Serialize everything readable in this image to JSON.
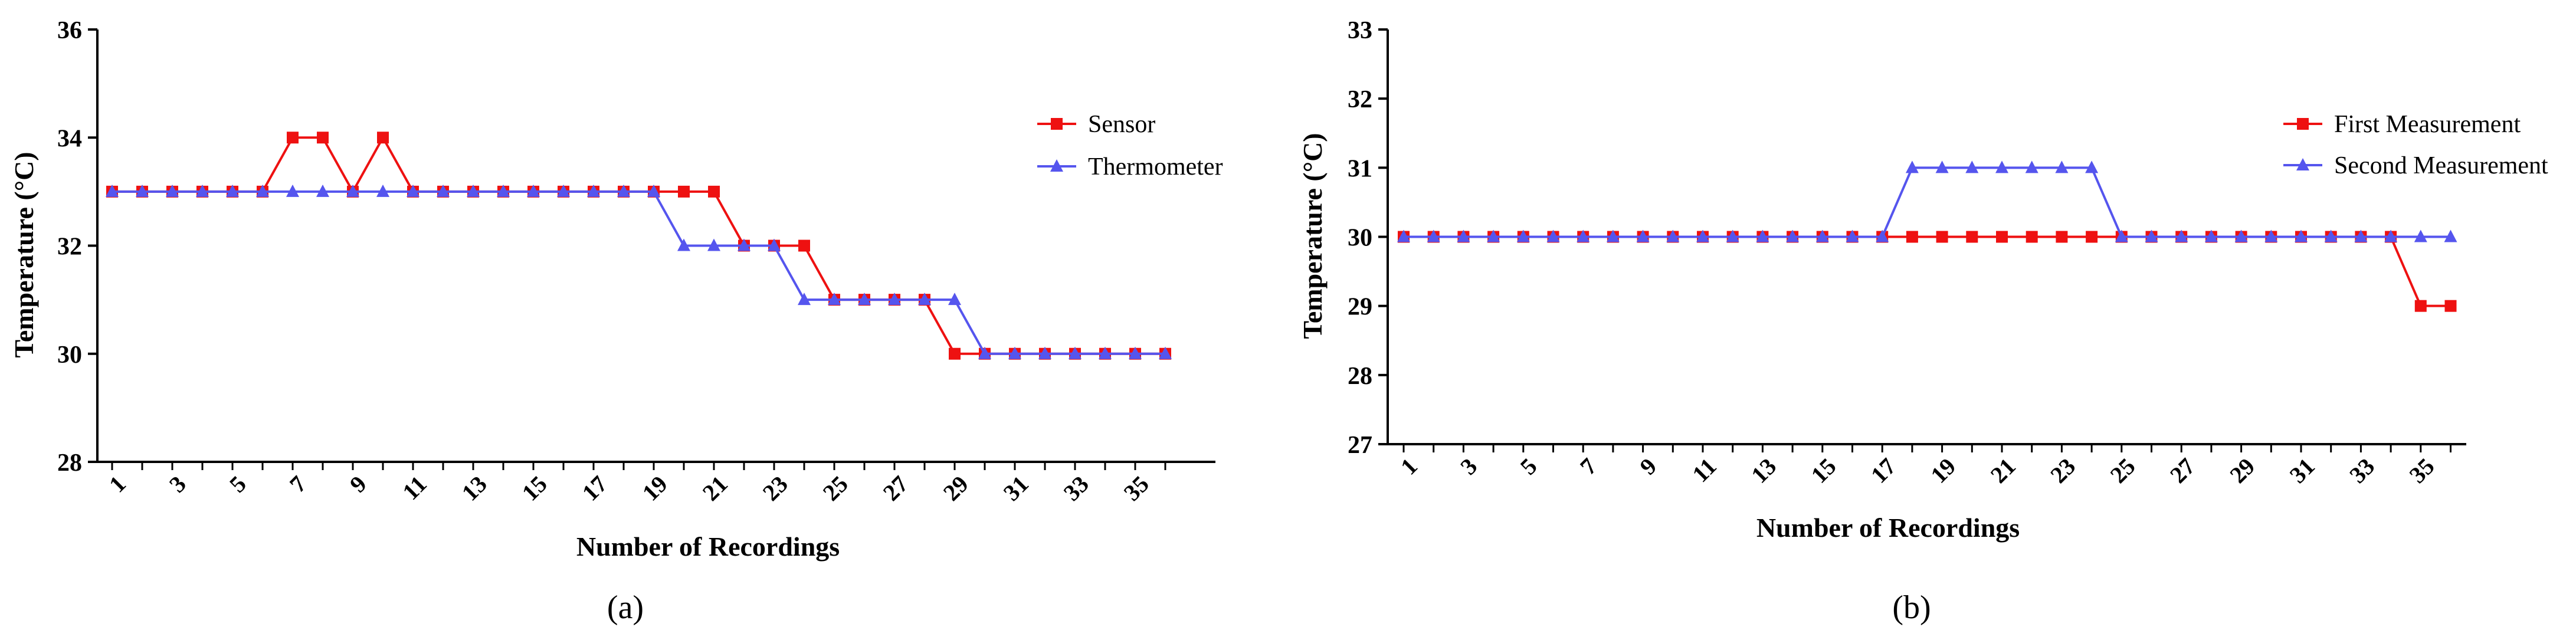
{
  "chart_data": [
    {
      "type": "line",
      "panel_label": "(a)",
      "title": "",
      "xlabel": "Number of Recordings",
      "ylabel": "Temperature (°C)",
      "ylim": [
        28,
        36
      ],
      "y_ticks": [
        "28",
        "30",
        "32",
        "34",
        "36"
      ],
      "x_tick_labels": [
        "1",
        "3",
        "5",
        "7",
        "9",
        "11",
        "13",
        "15",
        "17",
        "19",
        "21",
        "23",
        "25",
        "27",
        "29",
        "31",
        "33",
        "35"
      ],
      "x": [
        1,
        2,
        3,
        4,
        5,
        6,
        7,
        8,
        9,
        10,
        11,
        12,
        13,
        14,
        15,
        16,
        17,
        18,
        19,
        20,
        21,
        22,
        23,
        24,
        25,
        26,
        27,
        28,
        29,
        30,
        31,
        32,
        33,
        34,
        35,
        36
      ],
      "legend_position": "top-right",
      "series": [
        {
          "name": "Sensor",
          "color": "#ee1111",
          "marker": "square",
          "values": [
            33,
            33,
            33,
            33,
            33,
            33,
            34,
            34,
            33,
            34,
            33,
            33,
            33,
            33,
            33,
            33,
            33,
            33,
            33,
            33,
            33,
            32,
            32,
            32,
            31,
            31,
            31,
            31,
            30,
            30,
            30,
            30,
            30,
            30,
            30,
            30
          ]
        },
        {
          "name": "Thermometer",
          "color": "#5555ee",
          "marker": "triangle",
          "values": [
            33,
            33,
            33,
            33,
            33,
            33,
            33,
            33,
            33,
            33,
            33,
            33,
            33,
            33,
            33,
            33,
            33,
            33,
            33,
            32,
            32,
            32,
            32,
            31,
            31,
            31,
            31,
            31,
            31,
            30,
            30,
            30,
            30,
            30,
            30,
            30
          ]
        }
      ]
    },
    {
      "type": "line",
      "panel_label": "(b)",
      "title": "",
      "xlabel": "Number of Recordings",
      "ylabel": "Temperature (°C)",
      "ylim": [
        27,
        33
      ],
      "y_ticks": [
        "27",
        "28",
        "29",
        "30",
        "31",
        "32",
        "33"
      ],
      "x_tick_labels": [
        "1",
        "3",
        "5",
        "7",
        "9",
        "11",
        "13",
        "15",
        "17",
        "19",
        "21",
        "23",
        "25",
        "27",
        "29",
        "31",
        "33",
        "35"
      ],
      "x": [
        1,
        2,
        3,
        4,
        5,
        6,
        7,
        8,
        9,
        10,
        11,
        12,
        13,
        14,
        15,
        16,
        17,
        18,
        19,
        20,
        21,
        22,
        23,
        24,
        25,
        26,
        27,
        28,
        29,
        30,
        31,
        32,
        33,
        34,
        35,
        36
      ],
      "legend_position": "top-right",
      "series": [
        {
          "name": "First Measurement",
          "color": "#ee1111",
          "marker": "square",
          "values": [
            30,
            30,
            30,
            30,
            30,
            30,
            30,
            30,
            30,
            30,
            30,
            30,
            30,
            30,
            30,
            30,
            30,
            30,
            30,
            30,
            30,
            30,
            30,
            30,
            30,
            30,
            30,
            30,
            30,
            30,
            30,
            30,
            30,
            30,
            29,
            29
          ]
        },
        {
          "name": "Second Measurement",
          "color": "#5555ee",
          "marker": "triangle",
          "values": [
            30,
            30,
            30,
            30,
            30,
            30,
            30,
            30,
            30,
            30,
            30,
            30,
            30,
            30,
            30,
            30,
            30,
            31,
            31,
            31,
            31,
            31,
            31,
            31,
            30,
            30,
            30,
            30,
            30,
            30,
            30,
            30,
            30,
            30,
            30,
            30
          ]
        }
      ]
    }
  ]
}
